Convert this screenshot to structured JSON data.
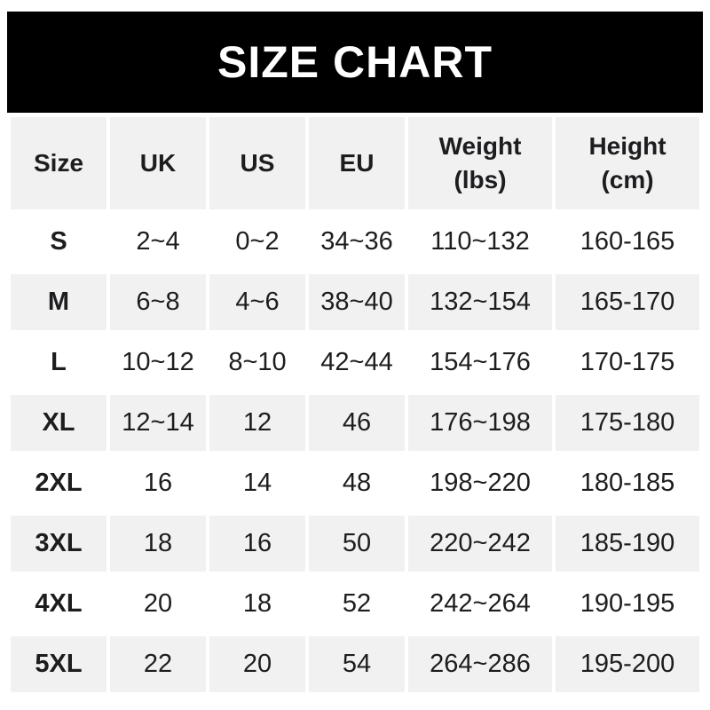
{
  "title": "SIZE CHART",
  "colors": {
    "banner_bg": "#000000",
    "banner_text": "#ffffff",
    "cell_bg": "#f1f1f2",
    "row_white": "#ffffff",
    "text": "#1d1d1f"
  },
  "table": {
    "columns": [
      {
        "label": "Size",
        "unit": ""
      },
      {
        "label": "UK",
        "unit": ""
      },
      {
        "label": "US",
        "unit": ""
      },
      {
        "label": "EU",
        "unit": ""
      },
      {
        "label": "Weight",
        "unit": "(lbs)"
      },
      {
        "label": "Height",
        "unit": "(cm)"
      }
    ],
    "rows": [
      {
        "cells": [
          "S",
          "2~4",
          "0~2",
          "34~36",
          "110~132",
          "160-165"
        ]
      },
      {
        "cells": [
          "M",
          "6~8",
          "4~6",
          "38~40",
          "132~154",
          "165-170"
        ]
      },
      {
        "cells": [
          "L",
          "10~12",
          "8~10",
          "42~44",
          "154~176",
          "170-175"
        ]
      },
      {
        "cells": [
          "XL",
          "12~14",
          "12",
          "46",
          "176~198",
          "175-180"
        ]
      },
      {
        "cells": [
          "2XL",
          "16",
          "14",
          "48",
          "198~220",
          "180-185"
        ]
      },
      {
        "cells": [
          "3XL",
          "18",
          "16",
          "50",
          "220~242",
          "185-190"
        ]
      },
      {
        "cells": [
          "4XL",
          "20",
          "18",
          "52",
          "242~264",
          "190-195"
        ]
      },
      {
        "cells": [
          "5XL",
          "22",
          "20",
          "54",
          "264~286",
          "195-200"
        ]
      }
    ]
  },
  "chart_data": {
    "type": "table",
    "title": "SIZE CHART",
    "columns": [
      "Size",
      "UK",
      "US",
      "EU",
      "Weight (lbs)",
      "Height (cm)"
    ],
    "rows": [
      [
        "S",
        "2~4",
        "0~2",
        "34~36",
        "110~132",
        "160-165"
      ],
      [
        "M",
        "6~8",
        "4~6",
        "38~40",
        "132~154",
        "165-170"
      ],
      [
        "L",
        "10~12",
        "8~10",
        "42~44",
        "154~176",
        "170-175"
      ],
      [
        "XL",
        "12~14",
        "12",
        "46",
        "176~198",
        "175-180"
      ],
      [
        "2XL",
        "16",
        "14",
        "48",
        "198~220",
        "180-185"
      ],
      [
        "3XL",
        "18",
        "16",
        "50",
        "220~242",
        "185-190"
      ],
      [
        "4XL",
        "20",
        "18",
        "52",
        "242~264",
        "190-195"
      ],
      [
        "5XL",
        "22",
        "20",
        "54",
        "264~286",
        "195-200"
      ]
    ]
  }
}
